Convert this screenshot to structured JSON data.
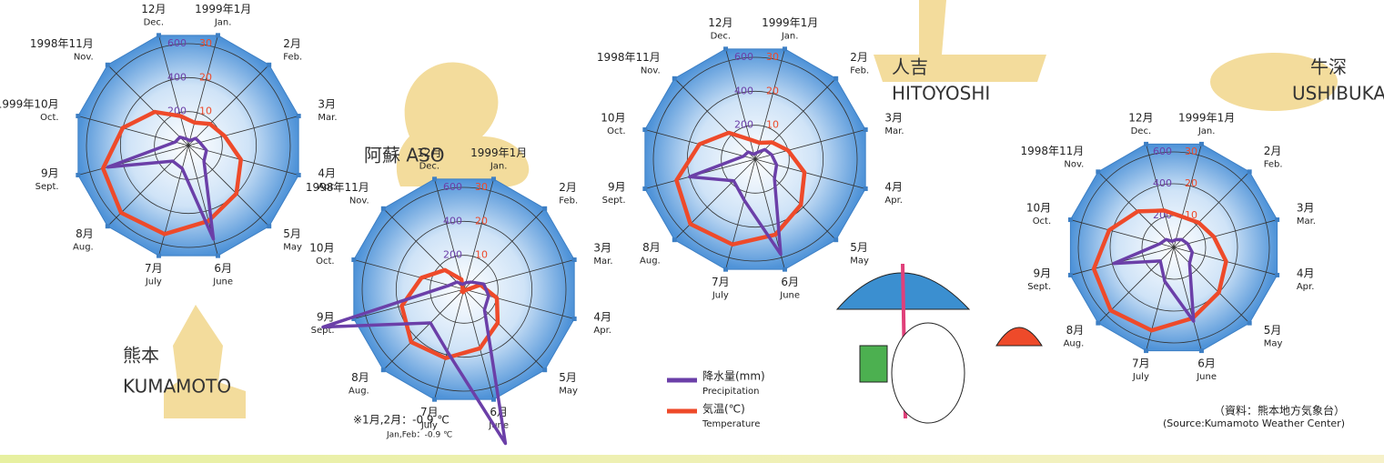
{
  "chart_data": [
    {
      "type": "radar",
      "title": "熊本",
      "title_en": "KUMAMOTO",
      "categories": [
        "1999年1月",
        "2月",
        "3月",
        "4月",
        "5月",
        "6月",
        "7月",
        "8月",
        "9月",
        "1999年10月",
        "1998年11月",
        "12月"
      ],
      "categories_en": [
        "Jan.",
        "Feb.",
        "Mar.",
        "Apr.",
        "May",
        "June",
        "July",
        "Aug.",
        "Sept.",
        "Oct.",
        "Nov.",
        "Dec."
      ],
      "precipitation": [
        30,
        60,
        70,
        110,
        130,
        570,
        140,
        130,
        490,
        80,
        70,
        40
      ],
      "temperature": [
        7,
        9,
        11,
        16,
        20,
        23,
        27,
        28,
        26,
        20,
        14,
        9
      ],
      "rlim": [
        0,
        600
      ],
      "rticks": [
        200,
        400,
        600
      ],
      "r2lim": [
        0,
        30
      ],
      "r2ticks": [
        10,
        20,
        30
      ]
    },
    {
      "type": "radar",
      "title": "阿蘇 ASO",
      "categories": [
        "1999年1月",
        "2月",
        "3月",
        "4月",
        "5月",
        "6月",
        "7月",
        "8月",
        "9月",
        "10月",
        "1998年11月",
        "12月"
      ],
      "categories_en": [
        "Jan.",
        "Feb.",
        "Mar.",
        "Apr.",
        "May",
        "June",
        "July",
        "Aug.",
        "Sept.",
        "Oct.",
        "Nov.",
        "Dec."
      ],
      "precipitation": [
        40,
        60,
        120,
        150,
        170,
        940,
        380,
        280,
        860,
        90,
        60,
        30
      ],
      "temperature": [
        -0.9,
        -0.9,
        5,
        10,
        14,
        18,
        21,
        22,
        19,
        13,
        8,
        3
      ],
      "rlim": [
        0,
        600
      ],
      "rticks": [
        200,
        400,
        600
      ],
      "r2lim": [
        0,
        30
      ],
      "r2ticks": [
        10,
        20,
        30
      ],
      "note": "※1月,2月：-0.9 ℃",
      "note_en": "Jan,Feb：-0.9 ℃"
    },
    {
      "type": "radar",
      "title": "人吉",
      "title_en": "HITOYOSHI",
      "categories": [
        "1999年1月",
        "2月",
        "3月",
        "4月",
        "5月",
        "6月",
        "7月",
        "8月",
        "9月",
        "10月",
        "1998年11月",
        "12月"
      ],
      "categories_en": [
        "Jan.",
        "Feb.",
        "Mar.",
        "Apr.",
        "May",
        "June",
        "July",
        "Aug.",
        "Sept.",
        "Oct.",
        "Nov.",
        "Dec."
      ],
      "precipitation": [
        40,
        80,
        100,
        130,
        160,
        580,
        250,
        180,
        400,
        70,
        60,
        30
      ],
      "temperature": [
        5,
        7,
        10,
        15,
        19,
        23,
        26,
        27,
        24,
        17,
        11,
        6
      ],
      "rlim": [
        0,
        600
      ],
      "rticks": [
        200,
        400,
        600
      ],
      "r2lim": [
        0,
        30
      ],
      "r2ticks": [
        10,
        20,
        30
      ]
    },
    {
      "type": "radar",
      "title": "牛深",
      "title_en": "USHIBUKA",
      "categories": [
        "1999年1月",
        "2月",
        "3月",
        "4月",
        "5月",
        "6月",
        "7月",
        "8月",
        "9月",
        "10月",
        "1998年11月",
        "12月"
      ],
      "categories_en": [
        "Jan.",
        "Feb.",
        "Mar.",
        "Apr.",
        "May",
        "June",
        "July",
        "Aug.",
        "Sept.",
        "Oct.",
        "Nov.",
        "Dec."
      ],
      "precipitation": [
        50,
        70,
        90,
        120,
        140,
        480,
        220,
        120,
        390,
        90,
        70,
        40
      ],
      "temperature": [
        10,
        11,
        13,
        17,
        20,
        23,
        27,
        28,
        26,
        21,
        16,
        12
      ],
      "rlim": [
        0,
        600
      ],
      "rticks": [
        200,
        400,
        600
      ],
      "r2lim": [
        0,
        30
      ],
      "r2ticks": [
        10,
        20,
        30
      ]
    }
  ],
  "legend": {
    "precipitation": {
      "name": "降水量(mm)",
      "name_en": "Precipitation",
      "color": "#6b3fa8"
    },
    "temperature": {
      "name": "気温(℃)",
      "name_en": "Temperature",
      "color": "#ee4a2a"
    }
  },
  "source": "（資料：熊本地方気象台）",
  "source_en": "(Source:Kumamoto Weather Center)"
}
